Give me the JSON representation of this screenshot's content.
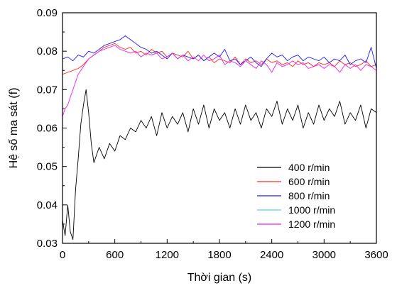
{
  "chart_data": {
    "type": "line",
    "title": "",
    "xlabel": "Thời gian (s)",
    "ylabel": "Hệ số ma sát (f)",
    "xlim": [
      0,
      3600
    ],
    "ylim": [
      0.03,
      0.09
    ],
    "xticks": [
      0,
      600,
      1200,
      1800,
      2400,
      3000,
      3600
    ],
    "yticks": [
      0.03,
      0.04,
      0.05,
      0.06,
      0.07,
      0.08,
      0.09
    ],
    "xtick_labels": [
      "0",
      "600",
      "1200",
      "1800",
      "2400",
      "3000",
      "3600"
    ],
    "ytick_labels": [
      "0.03",
      "0.04",
      "0.05",
      "0.06",
      "0.07",
      "0.08",
      "0.09"
    ],
    "grid": false,
    "legend_position": "bottom-right",
    "series": [
      {
        "name": "400 r/min",
        "color": "#000000",
        "x": [
          0,
          30,
          60,
          90,
          120,
          150,
          180,
          210,
          240,
          270,
          300,
          330,
          360,
          420,
          480,
          540,
          600,
          660,
          720,
          780,
          840,
          900,
          960,
          1020,
          1080,
          1140,
          1200,
          1260,
          1320,
          1380,
          1440,
          1500,
          1560,
          1620,
          1680,
          1740,
          1800,
          1860,
          1920,
          1980,
          2040,
          2100,
          2160,
          2220,
          2280,
          2340,
          2400,
          2460,
          2520,
          2580,
          2640,
          2700,
          2760,
          2820,
          2880,
          2940,
          3000,
          3060,
          3120,
          3180,
          3240,
          3300,
          3360,
          3420,
          3480,
          3540,
          3600
        ],
        "values": [
          0.036,
          0.032,
          0.04,
          0.033,
          0.031,
          0.044,
          0.052,
          0.061,
          0.066,
          0.07,
          0.064,
          0.056,
          0.051,
          0.055,
          0.052,
          0.056,
          0.054,
          0.058,
          0.057,
          0.06,
          0.059,
          0.062,
          0.06,
          0.063,
          0.058,
          0.064,
          0.06,
          0.063,
          0.061,
          0.064,
          0.059,
          0.065,
          0.061,
          0.066,
          0.06,
          0.065,
          0.062,
          0.064,
          0.06,
          0.065,
          0.061,
          0.066,
          0.062,
          0.064,
          0.06,
          0.065,
          0.063,
          0.067,
          0.061,
          0.065,
          0.062,
          0.066,
          0.06,
          0.064,
          0.061,
          0.066,
          0.062,
          0.065,
          0.063,
          0.067,
          0.061,
          0.064,
          0.062,
          0.066,
          0.06,
          0.065,
          0.064
        ]
      },
      {
        "name": "600 r/min",
        "color": "#ff2a1a",
        "x": [
          0,
          60,
          120,
          180,
          240,
          300,
          360,
          420,
          480,
          540,
          600,
          660,
          720,
          780,
          840,
          900,
          960,
          1020,
          1080,
          1140,
          1200,
          1260,
          1320,
          1380,
          1440,
          1500,
          1560,
          1620,
          1680,
          1740,
          1800,
          1860,
          1920,
          1980,
          2040,
          2100,
          2160,
          2220,
          2280,
          2340,
          2400,
          2460,
          2520,
          2580,
          2640,
          2700,
          2760,
          2820,
          2880,
          2940,
          3000,
          3060,
          3120,
          3180,
          3240,
          3300,
          3360,
          3420,
          3480,
          3540,
          3600
        ],
        "values": [
          0.074,
          0.0745,
          0.075,
          0.0755,
          0.0765,
          0.078,
          0.079,
          0.08,
          0.081,
          0.0815,
          0.082,
          0.081,
          0.0805,
          0.081,
          0.0795,
          0.08,
          0.079,
          0.0805,
          0.0795,
          0.08,
          0.0785,
          0.0795,
          0.079,
          0.0785,
          0.08,
          0.078,
          0.079,
          0.0775,
          0.0785,
          0.077,
          0.078,
          0.0775,
          0.077,
          0.0785,
          0.0765,
          0.078,
          0.077,
          0.0775,
          0.0765,
          0.078,
          0.077,
          0.0775,
          0.0765,
          0.077,
          0.076,
          0.0775,
          0.0765,
          0.077,
          0.076,
          0.077,
          0.0765,
          0.077,
          0.076,
          0.0775,
          0.0765,
          0.077,
          0.076,
          0.0765,
          0.0775,
          0.076,
          0.0765
        ]
      },
      {
        "name": "800 r/min",
        "color": "#1a1aff",
        "x": [
          0,
          60,
          120,
          180,
          240,
          300,
          360,
          420,
          480,
          540,
          600,
          660,
          720,
          780,
          840,
          900,
          960,
          1020,
          1080,
          1140,
          1200,
          1260,
          1320,
          1380,
          1440,
          1500,
          1560,
          1620,
          1680,
          1740,
          1800,
          1860,
          1920,
          1980,
          2040,
          2100,
          2160,
          2220,
          2280,
          2340,
          2400,
          2460,
          2520,
          2580,
          2640,
          2700,
          2760,
          2820,
          2880,
          2940,
          3000,
          3060,
          3120,
          3180,
          3240,
          3300,
          3360,
          3420,
          3480,
          3540,
          3600
        ],
        "values": [
          0.078,
          0.0785,
          0.0775,
          0.079,
          0.0785,
          0.08,
          0.0795,
          0.0805,
          0.0815,
          0.082,
          0.0825,
          0.083,
          0.084,
          0.083,
          0.082,
          0.081,
          0.0805,
          0.0795,
          0.08,
          0.079,
          0.078,
          0.0795,
          0.078,
          0.079,
          0.0785,
          0.078,
          0.079,
          0.0775,
          0.0785,
          0.0795,
          0.0785,
          0.0805,
          0.0775,
          0.078,
          0.0765,
          0.0775,
          0.0785,
          0.077,
          0.076,
          0.078,
          0.0795,
          0.0785,
          0.079,
          0.0775,
          0.0785,
          0.079,
          0.0775,
          0.0785,
          0.078,
          0.0775,
          0.0785,
          0.077,
          0.078,
          0.0775,
          0.079,
          0.0765,
          0.0775,
          0.078,
          0.077,
          0.081,
          0.0755
        ]
      },
      {
        "name": "1000 r/min",
        "color": "#5ad2d2",
        "x": [
          0,
          600,
          1200,
          1800,
          2400,
          3000,
          3600
        ],
        "values": [
          null,
          null,
          null,
          null,
          null,
          null,
          null
        ]
      },
      {
        "name": "1200 r/min",
        "color": "#ee22ee",
        "x": [
          0,
          30,
          60,
          90,
          120,
          150,
          180,
          240,
          300,
          360,
          420,
          480,
          540,
          600,
          660,
          720,
          780,
          840,
          900,
          960,
          1020,
          1080,
          1140,
          1200,
          1260,
          1320,
          1380,
          1440,
          1500,
          1560,
          1620,
          1680,
          1740,
          1800,
          1860,
          1920,
          1980,
          2040,
          2100,
          2160,
          2220,
          2280,
          2340,
          2400,
          2460,
          2520,
          2580,
          2640,
          2700,
          2760,
          2820,
          2880,
          2940,
          3000,
          3060,
          3120,
          3180,
          3240,
          3300,
          3360,
          3420,
          3480,
          3540,
          3600
        ],
        "values": [
          0.063,
          0.065,
          0.066,
          0.068,
          0.07,
          0.072,
          0.074,
          0.076,
          0.078,
          0.079,
          0.08,
          0.0805,
          0.081,
          0.0815,
          0.0805,
          0.08,
          0.0795,
          0.08,
          0.0785,
          0.0795,
          0.079,
          0.0795,
          0.078,
          0.0785,
          0.0795,
          0.078,
          0.079,
          0.0775,
          0.0785,
          0.0775,
          0.079,
          0.0775,
          0.078,
          0.079,
          0.0765,
          0.0775,
          0.077,
          0.076,
          0.0775,
          0.0765,
          0.0755,
          0.0775,
          0.0765,
          0.0745,
          0.077,
          0.076,
          0.0765,
          0.0775,
          0.0765,
          0.077,
          0.0755,
          0.076,
          0.0765,
          0.0755,
          0.0765,
          0.076,
          0.0745,
          0.0765,
          0.0755,
          0.0765,
          0.075,
          0.0765,
          0.076,
          0.075
        ]
      }
    ]
  }
}
